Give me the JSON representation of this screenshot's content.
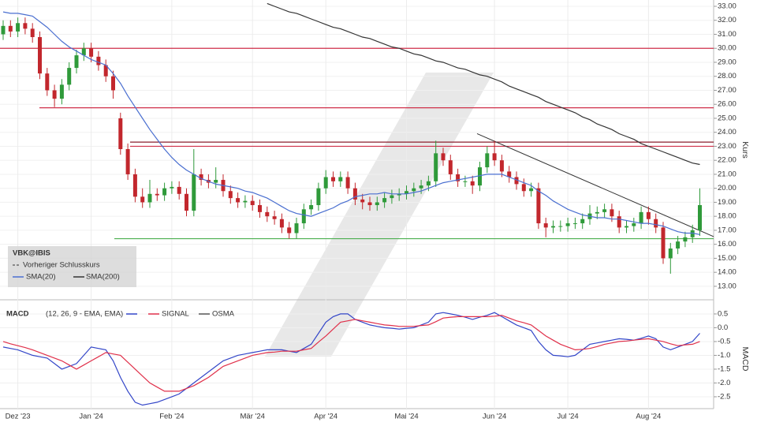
{
  "chart_data": [
    {
      "type": "candlestick",
      "title": "VBK@IBIS",
      "y_label": "Kurs",
      "reference_label": "Vorheriger Schlusskurs",
      "categories": [
        null,
        null,
        "Dez '23",
        null,
        null,
        null,
        null,
        null,
        null,
        null,
        null,
        null,
        "Jan '24",
        null,
        null,
        null,
        null,
        null,
        null,
        null,
        null,
        null,
        null,
        "Feb '24",
        null,
        null,
        null,
        null,
        null,
        null,
        null,
        null,
        null,
        null,
        "Mär '24",
        null,
        null,
        null,
        null,
        null,
        null,
        null,
        null,
        null,
        "Apr '24",
        null,
        null,
        null,
        null,
        null,
        null,
        null,
        null,
        null,
        null,
        "Mai '24",
        null,
        null,
        null,
        null,
        null,
        null,
        null,
        null,
        null,
        null,
        null,
        "Jun '24",
        null,
        null,
        null,
        null,
        null,
        null,
        null,
        null,
        null,
        "Jul '24",
        null,
        null,
        null,
        null,
        null,
        null,
        null,
        null,
        null,
        null,
        "Aug '24",
        null,
        null,
        null,
        null,
        null,
        null,
        null
      ],
      "open": [
        31.0,
        31.6,
        31.2,
        31.8,
        31.4,
        30.8,
        28.2,
        27.0,
        26.4,
        27.4,
        28.6,
        29.5,
        30.0,
        29.4,
        28.8,
        28.0,
        25.0,
        22.8,
        21.0,
        19.4,
        19.0,
        19.6,
        19.5,
        20.0,
        20.1,
        19.6,
        18.4,
        21.0,
        20.6,
        20.4,
        20.6,
        19.8,
        19.3,
        19.0,
        19.1,
        18.8,
        18.3,
        18.0,
        17.8,
        17.2,
        16.8,
        17.5,
        18.5,
        18.8,
        20.0,
        20.8,
        20.5,
        20.8,
        20.0,
        19.2,
        19.0,
        18.8,
        19.0,
        19.3,
        19.5,
        19.6,
        19.8,
        20.0,
        20.2,
        20.5,
        22.5,
        22.0,
        21.0,
        20.5,
        20.5,
        20.2,
        21.5,
        22.5,
        22.0,
        21.2,
        20.8,
        20.3,
        19.8,
        20.0,
        17.5,
        17.2,
        17.3,
        17.3,
        17.5,
        17.5,
        17.8,
        18.2,
        18.3,
        18.5,
        18.0,
        17.2,
        17.3,
        17.5,
        18.3,
        17.8,
        17.2,
        15.0,
        15.7,
        16.2,
        16.5,
        17.0
      ],
      "high": [
        32.0,
        32.0,
        32.2,
        32.2,
        31.8,
        31.2,
        28.6,
        27.4,
        27.8,
        29.0,
        29.9,
        30.4,
        30.4,
        29.8,
        29.2,
        28.4,
        25.4,
        23.2,
        21.4,
        20.0,
        20.6,
        20.0,
        20.4,
        20.5,
        20.5,
        20.0,
        22.8,
        21.4,
        21.0,
        21.5,
        21.0,
        20.2,
        19.7,
        19.5,
        19.5,
        19.2,
        18.7,
        18.4,
        18.2,
        17.6,
        17.9,
        18.9,
        19.2,
        20.4,
        21.3,
        21.2,
        21.2,
        21.2,
        20.4,
        19.6,
        19.4,
        19.4,
        19.7,
        19.9,
        20.0,
        20.2,
        20.4,
        20.6,
        20.9,
        23.4,
        22.9,
        22.4,
        21.4,
        20.9,
        20.9,
        21.9,
        23.0,
        23.4,
        22.4,
        21.6,
        21.2,
        20.7,
        20.4,
        20.4,
        17.9,
        17.7,
        17.7,
        17.9,
        17.9,
        18.2,
        18.8,
        18.7,
        18.9,
        18.9,
        18.4,
        17.7,
        17.9,
        18.7,
        18.7,
        18.2,
        17.6,
        16.1,
        16.6,
        16.9,
        17.4,
        20.0
      ],
      "low": [
        30.6,
        30.8,
        30.8,
        31.0,
        30.4,
        27.8,
        26.6,
        25.8,
        26.0,
        27.0,
        28.2,
        29.1,
        29.0,
        28.4,
        27.6,
        26.4,
        22.4,
        20.6,
        19.0,
        18.6,
        18.6,
        19.1,
        19.1,
        19.6,
        19.2,
        18.0,
        18.0,
        20.2,
        20.0,
        20.0,
        19.4,
        18.9,
        18.6,
        18.6,
        18.4,
        17.9,
        17.6,
        17.4,
        16.8,
        16.4,
        16.4,
        17.1,
        18.1,
        18.4,
        19.6,
        20.1,
        20.1,
        19.6,
        18.8,
        18.5,
        18.4,
        18.4,
        18.6,
        18.9,
        19.1,
        19.2,
        19.4,
        19.6,
        19.8,
        20.1,
        21.6,
        20.6,
        20.1,
        20.1,
        19.6,
        19.8,
        21.1,
        21.6,
        20.8,
        20.4,
        19.9,
        19.4,
        19.4,
        17.1,
        16.5,
        16.8,
        16.9,
        16.9,
        17.1,
        17.1,
        17.4,
        17.8,
        17.9,
        17.6,
        16.8,
        16.8,
        16.9,
        17.1,
        17.4,
        16.8,
        14.6,
        13.9,
        15.3,
        15.8,
        16.1,
        16.6
      ],
      "close": [
        31.6,
        31.2,
        31.8,
        31.4,
        30.8,
        28.2,
        27.0,
        26.4,
        27.4,
        28.6,
        29.5,
        30.0,
        29.4,
        28.8,
        28.0,
        27.0,
        22.8,
        21.0,
        19.4,
        19.0,
        19.6,
        19.5,
        20.0,
        20.1,
        19.6,
        18.4,
        21.0,
        20.6,
        20.4,
        20.6,
        19.8,
        19.3,
        19.0,
        19.1,
        18.8,
        18.3,
        18.0,
        17.8,
        17.2,
        16.8,
        17.5,
        18.5,
        18.8,
        20.0,
        20.8,
        20.5,
        20.8,
        20.0,
        19.2,
        19.0,
        18.8,
        19.0,
        19.3,
        19.5,
        19.6,
        19.8,
        20.0,
        20.2,
        20.5,
        22.5,
        22.0,
        21.0,
        20.5,
        20.5,
        20.2,
        21.5,
        22.5,
        22.0,
        21.2,
        20.8,
        20.3,
        19.8,
        20.0,
        17.5,
        17.2,
        17.3,
        17.3,
        17.5,
        17.5,
        17.8,
        18.2,
        18.3,
        18.5,
        18.0,
        17.2,
        17.3,
        17.5,
        18.3,
        17.8,
        17.2,
        15.0,
        15.7,
        16.2,
        16.5,
        17.0,
        18.8
      ],
      "up_color": "#2f9a3a",
      "down_color": "#c2272d",
      "series": [
        {
          "name": "SMA(20)",
          "color": "#4a6fd0",
          "values": [
            32.6,
            32.5,
            32.5,
            32.4,
            32.3,
            31.9,
            31.5,
            31.0,
            30.5,
            30.1,
            29.8,
            29.5,
            29.2,
            29.0,
            28.8,
            28.2,
            27.5,
            26.6,
            25.8,
            25.0,
            24.2,
            23.5,
            22.8,
            22.2,
            21.7,
            21.3,
            21.0,
            20.7,
            20.5,
            20.3,
            20.2,
            20.1,
            20.0,
            19.8,
            19.7,
            19.5,
            19.3,
            19.0,
            18.7,
            18.4,
            18.2,
            18.1,
            18.0,
            18.2,
            18.4,
            18.6,
            18.9,
            19.1,
            19.4,
            19.5,
            19.6,
            19.6,
            19.7,
            19.6,
            19.6,
            19.6,
            19.7,
            19.8,
            20.0,
            20.2,
            20.4,
            20.5,
            20.6,
            20.7,
            20.8,
            20.9,
            21.0,
            21.0,
            21.0,
            20.8,
            20.6,
            20.4,
            20.2,
            19.8,
            19.5,
            19.1,
            18.8,
            18.5,
            18.3,
            18.1,
            18.0,
            17.9,
            17.9,
            17.8,
            17.8,
            17.7,
            17.6,
            17.5,
            17.5,
            17.4,
            17.3,
            17.1,
            16.9,
            16.8,
            16.8,
            16.7
          ]
        },
        {
          "name": "SMA(200)",
          "color": "#333333",
          "values": [
            null,
            null,
            null,
            null,
            null,
            null,
            null,
            null,
            null,
            null,
            null,
            null,
            null,
            null,
            null,
            null,
            null,
            null,
            null,
            null,
            null,
            null,
            null,
            null,
            null,
            null,
            null,
            null,
            null,
            null,
            null,
            null,
            null,
            null,
            null,
            null,
            33.2,
            33.0,
            32.8,
            32.6,
            32.5,
            32.3,
            32.1,
            31.9,
            31.7,
            31.5,
            31.4,
            31.2,
            31.0,
            30.8,
            30.7,
            30.5,
            30.3,
            30.1,
            30.0,
            29.8,
            29.6,
            29.5,
            29.3,
            29.1,
            29.0,
            28.8,
            28.6,
            28.5,
            28.3,
            28.1,
            28.0,
            27.8,
            27.6,
            27.3,
            27.1,
            26.9,
            26.7,
            26.5,
            26.2,
            26.0,
            25.8,
            25.6,
            25.4,
            25.1,
            24.9,
            24.6,
            24.4,
            24.2,
            23.9,
            23.7,
            23.5,
            23.2,
            23.0,
            22.8,
            22.6,
            22.4,
            22.2,
            22.0,
            21.8,
            21.7
          ]
        }
      ],
      "levels": [
        {
          "value": 30.0,
          "color": "#d0304a"
        },
        {
          "value": 25.75,
          "color": "#d0304a"
        },
        {
          "value": 23.3,
          "color": "#8a1c2c"
        },
        {
          "value": 23.0,
          "color": "#d0304a"
        },
        {
          "value": 16.4,
          "color": "#4caf50"
        }
      ],
      "trendline": [
        23.9,
        16.55
      ],
      "ylim": [
        12.15,
        33.45
      ],
      "yticks": [
        {
          "value": 13,
          "label": "13.00"
        },
        {
          "value": 14,
          "label": "14.00"
        },
        {
          "value": 15,
          "label": "15.00"
        },
        {
          "value": 16,
          "label": "16.00"
        },
        {
          "value": 17,
          "label": "17.00"
        },
        {
          "value": 18,
          "label": "18.00"
        },
        {
          "value": 19,
          "label": "19.00"
        },
        {
          "value": 20,
          "label": "20.00"
        },
        {
          "value": 21,
          "label": "21.00"
        },
        {
          "value": 22,
          "label": "22.00"
        },
        {
          "value": 23,
          "label": "23.00"
        },
        {
          "value": 24,
          "label": "24.00"
        },
        {
          "value": 25,
          "label": "25.00"
        },
        {
          "value": 26,
          "label": "26.00"
        },
        {
          "value": 27,
          "label": "27.00"
        },
        {
          "value": 28,
          "label": "28.00"
        },
        {
          "value": 29,
          "label": "29.00"
        },
        {
          "value": 30,
          "label": "30.00"
        },
        {
          "value": 31,
          "label": "31.00"
        },
        {
          "value": 32,
          "label": "32.00"
        },
        {
          "value": 33,
          "label": "33.00"
        }
      ],
      "grid": true
    },
    {
      "type": "line",
      "title": "MACD",
      "y_label": "MACD",
      "parameters": "(12, 26, 9 - EMA, EMA)",
      "osma_label": "OSMA",
      "series": [
        {
          "name": "MACD",
          "color": "#3346c8",
          "values": [
            -0.7,
            -0.75,
            -0.8,
            -0.9,
            -1.0,
            -1.05,
            -1.1,
            -1.3,
            -1.5,
            -1.4,
            -1.3,
            -1.0,
            -0.7,
            -0.75,
            -0.8,
            -1.2,
            -1.8,
            -2.3,
            -2.7,
            -2.8,
            -2.75,
            -2.7,
            -2.6,
            -2.5,
            -2.4,
            -2.2,
            -2.0,
            -1.8,
            -1.6,
            -1.4,
            -1.2,
            -1.1,
            -1.0,
            -0.95,
            -0.9,
            -0.85,
            -0.8,
            -0.8,
            -0.8,
            -0.85,
            -0.9,
            -0.75,
            -0.6,
            -0.2,
            0.2,
            0.4,
            0.5,
            0.5,
            0.3,
            0.2,
            0.1,
            0.05,
            0.0,
            -0.02,
            -0.05,
            -0.02,
            0.0,
            0.1,
            0.2,
            0.5,
            0.55,
            0.5,
            0.45,
            0.38,
            0.3,
            0.38,
            0.45,
            0.55,
            0.4,
            0.25,
            0.1,
            0.0,
            -0.1,
            -0.5,
            -0.8,
            -1.0,
            -1.02,
            -1.05,
            -1.0,
            -0.8,
            -0.6,
            -0.55,
            -0.5,
            -0.45,
            -0.4,
            -0.42,
            -0.45,
            -0.38,
            -0.3,
            -0.4,
            -0.7,
            -0.8,
            -0.7,
            -0.6,
            -0.5,
            -0.2
          ]
        },
        {
          "name": "SIGNAL",
          "color": "#e0304a",
          "values": [
            -0.5,
            -0.58,
            -0.65,
            -0.72,
            -0.8,
            -0.9,
            -1.0,
            -1.1,
            -1.2,
            -1.35,
            -1.5,
            -1.35,
            -1.2,
            -1.05,
            -0.9,
            -0.95,
            -1.0,
            -1.25,
            -1.5,
            -1.75,
            -2.0,
            -2.15,
            -2.3,
            -2.3,
            -2.3,
            -2.2,
            -2.1,
            -1.95,
            -1.8,
            -1.6,
            -1.4,
            -1.3,
            -1.2,
            -1.1,
            -1.0,
            -0.95,
            -0.9,
            -0.88,
            -0.85,
            -0.85,
            -0.85,
            -0.8,
            -0.75,
            -0.52,
            -0.3,
            -0.05,
            0.2,
            0.25,
            0.3,
            0.25,
            0.2,
            0.15,
            0.1,
            0.08,
            0.05,
            0.05,
            0.05,
            0.08,
            0.1,
            0.22,
            0.35,
            0.38,
            0.4,
            0.4,
            0.4,
            0.4,
            0.4,
            0.42,
            0.45,
            0.35,
            0.25,
            0.18,
            0.1,
            -0.1,
            -0.3,
            -0.45,
            -0.6,
            -0.7,
            -0.8,
            -0.78,
            -0.75,
            -0.68,
            -0.6,
            -0.55,
            -0.5,
            -0.48,
            -0.45,
            -0.42,
            -0.4,
            -0.45,
            -0.5,
            -0.58,
            -0.65,
            -0.62,
            -0.6,
            -0.5
          ]
        }
      ],
      "ylim": [
        -2.93,
        0.87
      ],
      "yticks": [
        0.5,
        {
          "value": 0,
          "label": "0.0"
        },
        -0.5,
        {
          "value": -1,
          "label": "-1.0"
        },
        -1.5,
        {
          "value": -2,
          "label": "-2.0"
        },
        -2.5
      ],
      "grid": true
    }
  ]
}
